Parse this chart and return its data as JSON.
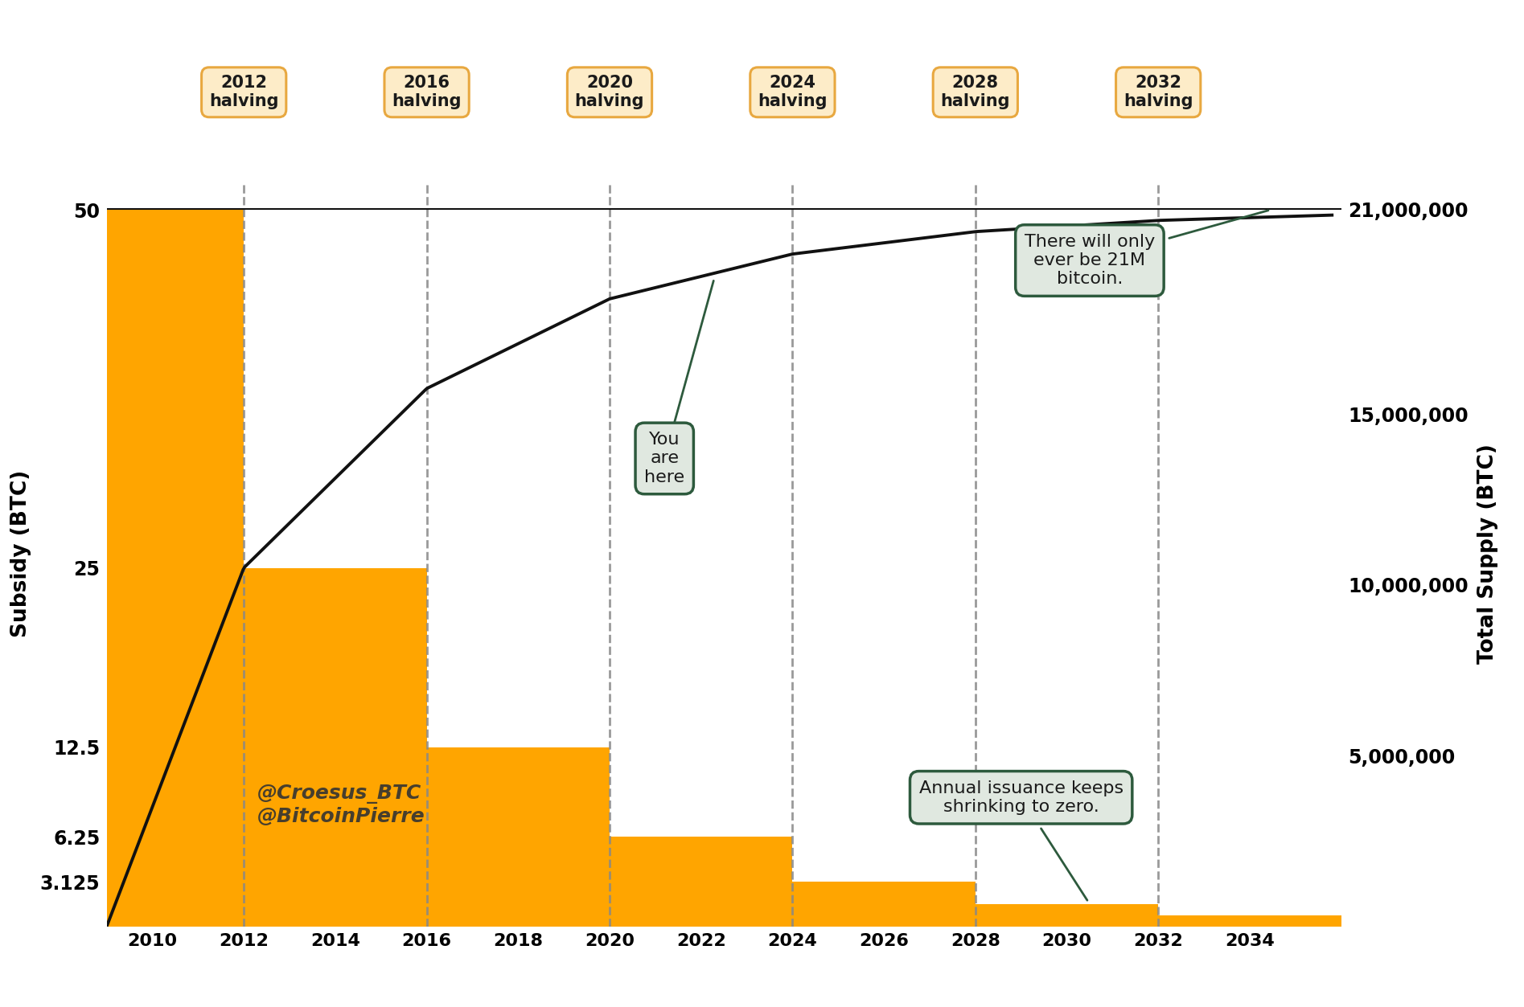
{
  "background_color": "#ffffff",
  "bar_color": "#FFA500",
  "line_color": "#111111",
  "halving_years": [
    2012,
    2016,
    2020,
    2024,
    2028,
    2032
  ],
  "halving_line_color": "#888888",
  "bar_steps": [
    {
      "x_start": 2009.0,
      "x_end": 2012,
      "height": 50
    },
    {
      "x_start": 2012,
      "x_end": 2016,
      "height": 25
    },
    {
      "x_start": 2016,
      "x_end": 2020,
      "height": 12.5
    },
    {
      "x_start": 2020,
      "x_end": 2024,
      "height": 6.25
    },
    {
      "x_start": 2024,
      "x_end": 2028,
      "height": 3.125
    },
    {
      "x_start": 2028,
      "x_end": 2032,
      "height": 1.5625
    },
    {
      "x_start": 2032,
      "x_end": 2036,
      "height": 0.78125
    }
  ],
  "left_yticks": [
    3.125,
    6.25,
    12.5,
    25,
    50
  ],
  "right_yticks": [
    5000000,
    10000000,
    15000000,
    21000000
  ],
  "right_ytick_labels": [
    "5,000,000",
    "10,000,000",
    "15,000,000",
    "21,000,000"
  ],
  "xlim": [
    2009.0,
    2036.0
  ],
  "ylim_left": [
    0,
    52
  ],
  "ylim_right": [
    0,
    21818181
  ],
  "xlabel_ticks": [
    2010,
    2012,
    2014,
    2016,
    2018,
    2020,
    2022,
    2024,
    2026,
    2028,
    2030,
    2032,
    2034
  ],
  "left_label": "Subsidy (BTC)",
  "right_label": "Total Supply (BTC)",
  "watermark1": "@Croesus_BTC",
  "watermark2": "@BitcoinPierre",
  "box_fill_halving": "#FDECC8",
  "box_edge_halving": "#E8A840",
  "annotation_box_fill": "#e0e8e0",
  "annotation_box_edge": "#2d5a3d",
  "halving_labels": [
    "2012\nhalving",
    "2016\nhalving",
    "2020\nhalving",
    "2024\nhalving",
    "2028\nhalving",
    "2032\nhalving"
  ]
}
